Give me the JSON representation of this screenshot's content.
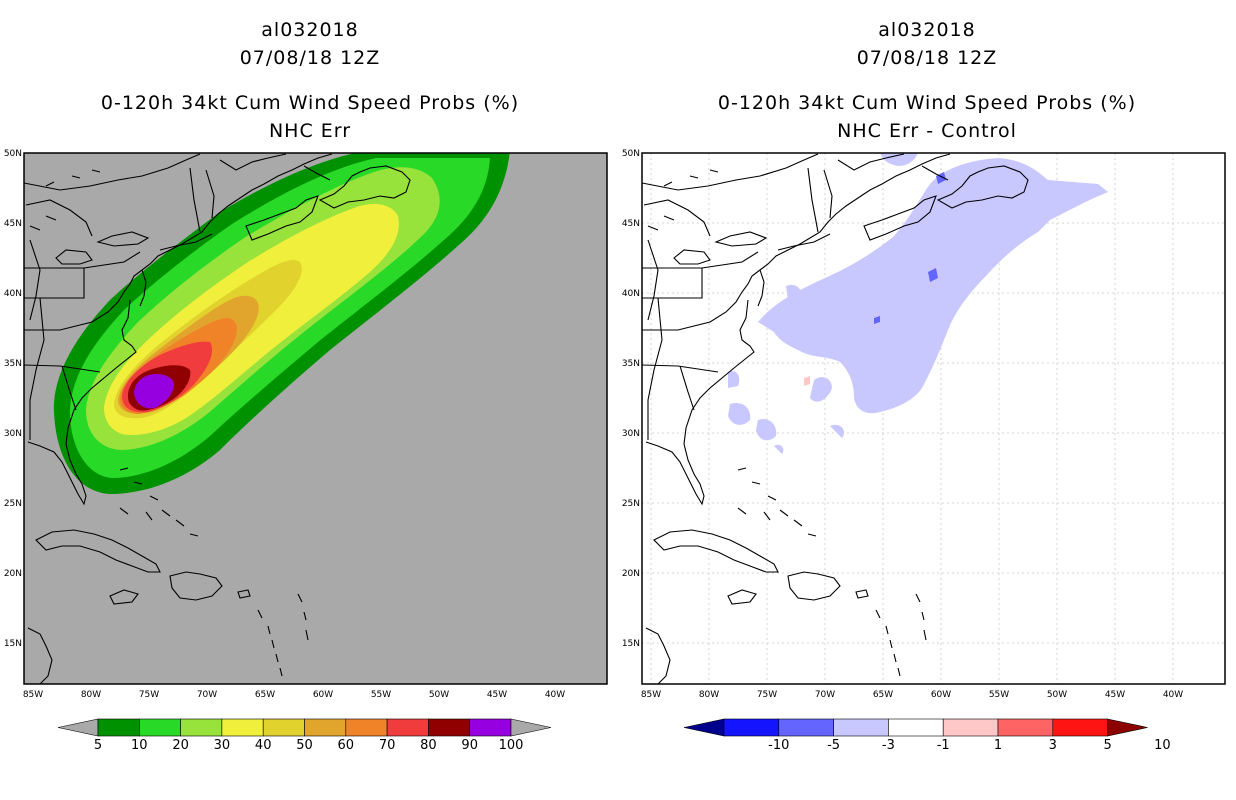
{
  "left_panel": {
    "storm_id": "al032018",
    "datetime": "07/08/18 12Z",
    "title": "0-120h 34kt Cum Wind Speed Probs (%)",
    "subtitle": "NHC Err",
    "background_color": "#a9a9a9",
    "colorbar": {
      "colors": [
        "#009100",
        "#28d928",
        "#98e23c",
        "#f0f03c",
        "#e1d22d",
        "#e1a52d",
        "#f08228",
        "#f03c3c",
        "#910000",
        "#9600e1"
      ],
      "labels": [
        "5",
        "10",
        "20",
        "30",
        "40",
        "50",
        "60",
        "70",
        "80",
        "90",
        "100"
      ]
    }
  },
  "right_panel": {
    "storm_id": "al032018",
    "datetime": "07/08/18 12Z",
    "title": "0-120h 34kt Cum Wind Speed Probs (%)",
    "subtitle": "NHC Err - Control",
    "colorbar": {
      "colors": [
        "#00008c",
        "#1414ff",
        "#6464ff",
        "#c8c8ff",
        "#ffffff",
        "#ffc8c8",
        "#ff6464",
        "#ff1414",
        "#8c0000"
      ],
      "labels": [
        "-10",
        "-5",
        "-3",
        "-1",
        "1",
        "3",
        "5",
        "10"
      ]
    }
  },
  "axes": {
    "lon_labels": [
      "85W",
      "80W",
      "75W",
      "70W",
      "65W",
      "60W",
      "55W",
      "50W",
      "45W",
      "40W"
    ],
    "lat_labels": [
      "50N",
      "45N",
      "40N",
      "35N",
      "30N",
      "25N",
      "20N",
      "15N"
    ]
  }
}
